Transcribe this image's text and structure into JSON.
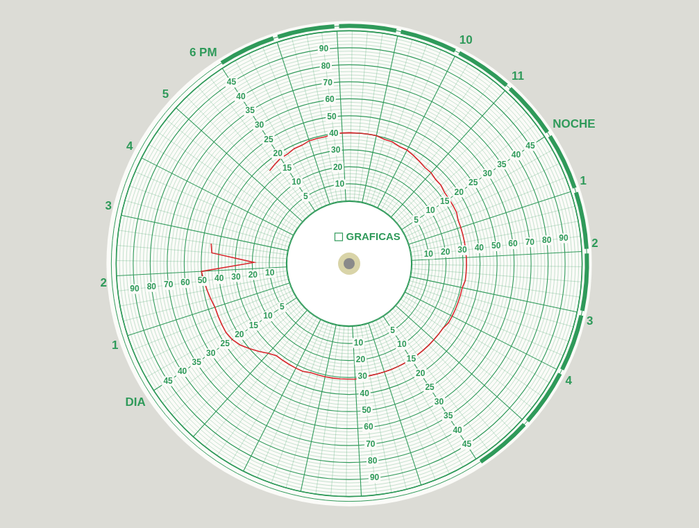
{
  "chart_data": {
    "type": "radar",
    "annotations": [
      "GRAFICAS"
    ],
    "categories": [
      "DIA",
      null,
      null,
      null,
      "1",
      null,
      null,
      null,
      "2",
      null,
      null,
      null,
      "3",
      null,
      null,
      null,
      "4",
      null,
      null,
      null,
      "5",
      null,
      null,
      null,
      "6 PM",
      null,
      null,
      null,
      null,
      null,
      null,
      null,
      null,
      null,
      null,
      null,
      null,
      null,
      null,
      null,
      "10",
      null,
      null,
      null,
      "11",
      null,
      null,
      null,
      "NOCHE",
      null,
      null,
      null,
      "1",
      null,
      null,
      null,
      "2",
      null,
      null,
      null,
      "3",
      null,
      null,
      null,
      "4",
      null,
      null,
      null,
      null,
      null,
      null,
      null,
      null,
      null,
      null,
      null,
      null,
      null,
      null,
      null,
      null,
      null,
      null,
      null,
      null,
      null,
      null,
      null,
      null,
      null,
      null,
      null,
      null,
      null,
      null,
      null
    ],
    "values": [
      45,
      46,
      46,
      46,
      46,
      47,
      48,
      49,
      50,
      19,
      44,
      45,
      null,
      null,
      null,
      null,
      null,
      null,
      null,
      null,
      null,
      null,
      35,
      36,
      37,
      37,
      38,
      38,
      39,
      39,
      39,
      40,
      40,
      40,
      40,
      40,
      40,
      39,
      39,
      38,
      38,
      37,
      36,
      35,
      35,
      34,
      34,
      33,
      33,
      33,
      33,
      32,
      32,
      32,
      32,
      32,
      32,
      32,
      32,
      32,
      31,
      31,
      31,
      31,
      31,
      31,
      30,
      30,
      30,
      30,
      30,
      30,
      30,
      30,
      30,
      30,
      30,
      30,
      30,
      31,
      31,
      31,
      31,
      31,
      31,
      31,
      31,
      32,
      32,
      32,
      32,
      32,
      34,
      37,
      40,
      43
    ],
    "color": "#d8262c",
    "ylim": [
      0,
      100
    ],
    "yticks": [
      10,
      20,
      30,
      40,
      50,
      60,
      70,
      80,
      90
    ],
    "y2lim": [
      0,
      50
    ],
    "y2ticks": [
      5,
      10,
      15,
      20,
      25,
      30,
      35,
      40,
      45
    ],
    "grid": true
  }
}
